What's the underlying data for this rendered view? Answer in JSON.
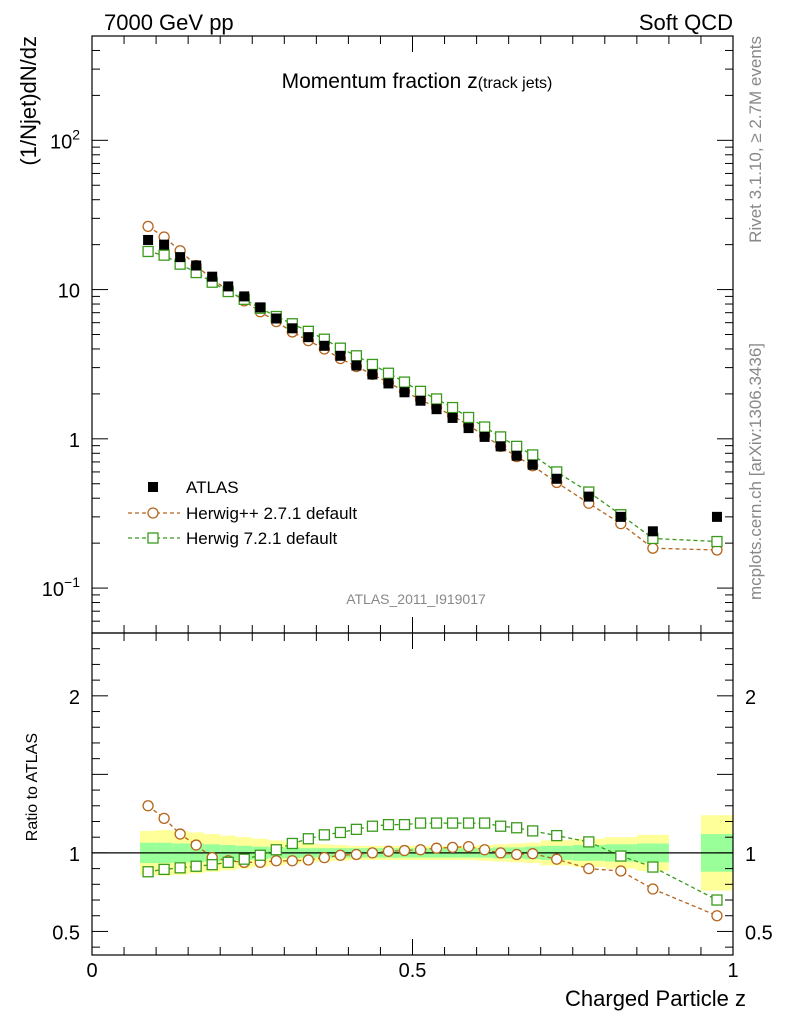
{
  "header": {
    "left": "7000 GeV pp",
    "right": "Soft QCD"
  },
  "side": {
    "rivet": "Rivet 3.1.10, ≥ 2.7M events",
    "mcplots": "mcplots.cern.ch [arXiv:1306.3436]"
  },
  "chart_data": [
    {
      "type": "scatter",
      "title_main": "Momentum fraction z",
      "title_sub": "(track jets)",
      "ylabel": "(1/Njet)dN/dz",
      "yscale": "log",
      "ylim": [
        0.05,
        500
      ],
      "xlim": [
        0,
        1
      ],
      "y_tick_labels": [
        {
          "value": 0.1,
          "base": "10",
          "exp": "−1"
        },
        {
          "value": 1,
          "base": "1",
          "exp": ""
        },
        {
          "value": 10,
          "base": "10",
          "exp": ""
        },
        {
          "value": 100,
          "base": "10",
          "exp": "2"
        }
      ],
      "watermark": "ATLAS_2011_I919017",
      "legend_position": "lower-left",
      "x": [
        0.0875,
        0.1125,
        0.1375,
        0.1625,
        0.1875,
        0.2125,
        0.2375,
        0.2625,
        0.2875,
        0.3125,
        0.3375,
        0.3625,
        0.3875,
        0.4125,
        0.4375,
        0.4625,
        0.4875,
        0.5125,
        0.5375,
        0.5625,
        0.5875,
        0.6125,
        0.6375,
        0.6625,
        0.6875,
        0.725,
        0.775,
        0.825,
        0.875,
        0.975
      ],
      "series": [
        {
          "name": "ATLAS",
          "marker": "square-filled",
          "color": "#000000",
          "values": [
            21.5,
            20.0,
            16.5,
            14.5,
            12.2,
            10.5,
            9.0,
            7.6,
            6.4,
            5.5,
            4.8,
            4.2,
            3.6,
            3.1,
            2.7,
            2.35,
            2.05,
            1.8,
            1.58,
            1.38,
            1.18,
            1.03,
            0.89,
            0.77,
            0.67,
            0.54,
            0.41,
            0.3,
            0.24,
            0.3
          ]
        },
        {
          "name": "Herwig++ 2.7.1 default",
          "marker": "circle-open",
          "color": "#b5651d",
          "values": [
            26.5,
            22.5,
            18.2,
            14.5,
            11.7,
            9.9,
            8.4,
            7.1,
            6.1,
            5.2,
            4.55,
            4.0,
            3.45,
            3.05,
            2.7,
            2.38,
            2.08,
            1.83,
            1.62,
            1.43,
            1.23,
            1.05,
            0.89,
            0.76,
            0.66,
            0.51,
            0.37,
            0.27,
            0.185,
            0.18
          ]
        },
        {
          "name": "Herwig 7.2.1 default",
          "marker": "square-open",
          "color": "#3a9a1c",
          "values": [
            18.0,
            17.0,
            14.8,
            13.0,
            11.2,
            9.7,
            8.6,
            7.5,
            6.6,
            5.9,
            5.25,
            4.65,
            4.05,
            3.6,
            3.15,
            2.75,
            2.4,
            2.08,
            1.85,
            1.62,
            1.39,
            1.2,
            1.03,
            0.89,
            0.78,
            0.6,
            0.44,
            0.31,
            0.215,
            0.205
          ]
        }
      ]
    },
    {
      "type": "scatter",
      "ylabel": "Ratio to ATLAS",
      "xlabel": "Charged Particle z",
      "ylim": [
        0.35,
        2.4
      ],
      "xlim": [
        0,
        1
      ],
      "y_tick_labels": [
        {
          "value": 0.5,
          "label": "0.5"
        },
        {
          "value": 1,
          "label": "1"
        },
        {
          "value": 2,
          "label": "2"
        }
      ],
      "x_tick_labels": [
        {
          "value": 0,
          "label": "0"
        },
        {
          "value": 0.5,
          "label": "0.5"
        },
        {
          "value": 1,
          "label": "1"
        }
      ],
      "reference_line": 1,
      "bands": {
        "inner_color": "#99ff99",
        "outer_color": "#ffff99",
        "bins": [
          {
            "lo": 0.075,
            "hi": 0.1,
            "inner": 0.065,
            "outer": 0.14
          },
          {
            "lo": 0.1,
            "hi": 0.125,
            "inner": 0.065,
            "outer": 0.145
          },
          {
            "lo": 0.125,
            "hi": 0.15,
            "inner": 0.06,
            "outer": 0.14
          },
          {
            "lo": 0.15,
            "hi": 0.175,
            "inner": 0.06,
            "outer": 0.13
          },
          {
            "lo": 0.175,
            "hi": 0.2,
            "inner": 0.055,
            "outer": 0.12
          },
          {
            "lo": 0.2,
            "hi": 0.225,
            "inner": 0.05,
            "outer": 0.11
          },
          {
            "lo": 0.225,
            "hi": 0.25,
            "inner": 0.045,
            "outer": 0.1
          },
          {
            "lo": 0.25,
            "hi": 0.275,
            "inner": 0.04,
            "outer": 0.09
          },
          {
            "lo": 0.275,
            "hi": 0.3,
            "inner": 0.035,
            "outer": 0.08
          },
          {
            "lo": 0.3,
            "hi": 0.325,
            "inner": 0.035,
            "outer": 0.07
          },
          {
            "lo": 0.325,
            "hi": 0.35,
            "inner": 0.03,
            "outer": 0.06
          },
          {
            "lo": 0.35,
            "hi": 0.375,
            "inner": 0.03,
            "outer": 0.055
          },
          {
            "lo": 0.375,
            "hi": 0.4,
            "inner": 0.03,
            "outer": 0.05
          },
          {
            "lo": 0.4,
            "hi": 0.425,
            "inner": 0.03,
            "outer": 0.045
          },
          {
            "lo": 0.425,
            "hi": 0.45,
            "inner": 0.03,
            "outer": 0.045
          },
          {
            "lo": 0.45,
            "hi": 0.475,
            "inner": 0.03,
            "outer": 0.045
          },
          {
            "lo": 0.475,
            "hi": 0.5,
            "inner": 0.03,
            "outer": 0.045
          },
          {
            "lo": 0.5,
            "hi": 0.525,
            "inner": 0.03,
            "outer": 0.045
          },
          {
            "lo": 0.525,
            "hi": 0.55,
            "inner": 0.03,
            "outer": 0.045
          },
          {
            "lo": 0.55,
            "hi": 0.575,
            "inner": 0.03,
            "outer": 0.045
          },
          {
            "lo": 0.575,
            "hi": 0.6,
            "inner": 0.03,
            "outer": 0.045
          },
          {
            "lo": 0.6,
            "hi": 0.625,
            "inner": 0.03,
            "outer": 0.05
          },
          {
            "lo": 0.625,
            "hi": 0.65,
            "inner": 0.035,
            "outer": 0.055
          },
          {
            "lo": 0.65,
            "hi": 0.675,
            "inner": 0.035,
            "outer": 0.06
          },
          {
            "lo": 0.675,
            "hi": 0.7,
            "inner": 0.04,
            "outer": 0.065
          },
          {
            "lo": 0.7,
            "hi": 0.75,
            "inner": 0.045,
            "outer": 0.08
          },
          {
            "lo": 0.75,
            "hi": 0.8,
            "inner": 0.05,
            "outer": 0.09
          },
          {
            "lo": 0.8,
            "hi": 0.85,
            "inner": 0.055,
            "outer": 0.1
          },
          {
            "lo": 0.85,
            "hi": 0.9,
            "inner": 0.06,
            "outer": 0.115
          },
          {
            "lo": 0.95,
            "hi": 1.0,
            "inner": 0.12,
            "outer": 0.24
          }
        ]
      },
      "x": [
        0.0875,
        0.1125,
        0.1375,
        0.1625,
        0.1875,
        0.2125,
        0.2375,
        0.2625,
        0.2875,
        0.3125,
        0.3375,
        0.3625,
        0.3875,
        0.4125,
        0.4375,
        0.4625,
        0.4875,
        0.5125,
        0.5375,
        0.5625,
        0.5875,
        0.6125,
        0.6375,
        0.6625,
        0.6875,
        0.725,
        0.775,
        0.825,
        0.875,
        0.975
      ],
      "series": [
        {
          "name": "Herwig++ 2.7.1 default",
          "marker": "circle-open",
          "color": "#b5651d",
          "values": [
            1.3,
            1.22,
            1.12,
            1.05,
            0.97,
            0.95,
            0.94,
            0.94,
            0.95,
            0.95,
            0.955,
            0.97,
            0.985,
            0.99,
            1.0,
            1.01,
            1.015,
            1.02,
            1.03,
            1.035,
            1.04,
            1.02,
            1.0,
            0.99,
            0.995,
            0.96,
            0.9,
            0.885,
            0.77,
            0.6
          ]
        },
        {
          "name": "Herwig 7.2.1 default",
          "marker": "square-open",
          "color": "#3a9a1c",
          "values": [
            0.88,
            0.895,
            0.905,
            0.915,
            0.925,
            0.94,
            0.96,
            0.985,
            1.02,
            1.06,
            1.09,
            1.115,
            1.13,
            1.15,
            1.17,
            1.18,
            1.18,
            1.19,
            1.19,
            1.19,
            1.19,
            1.19,
            1.17,
            1.16,
            1.14,
            1.11,
            1.07,
            0.98,
            0.91,
            0.7
          ]
        }
      ]
    }
  ]
}
